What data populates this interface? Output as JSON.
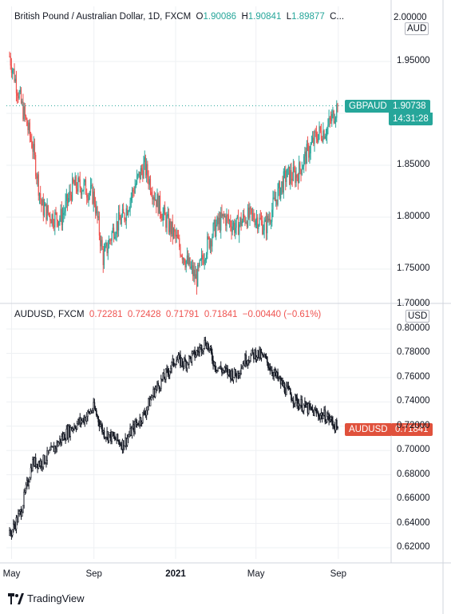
{
  "colors": {
    "up": "#26a69a",
    "down": "#ef5350",
    "line": "#131722",
    "grid": "#eef0f3",
    "axis": "#d1d4dc"
  },
  "top_header": {
    "title": "British Pound / Australian Dollar, 1D, FXCM",
    "o_label": "O",
    "o_value": "1.90086",
    "h_label": "H",
    "h_value": "1.90841",
    "l_label": "L",
    "l_value": "1.89877",
    "c_label": "C..."
  },
  "top_currency": "AUD",
  "top_price_tag": {
    "symbol": "GBPAUD",
    "price": "1.90738",
    "countdown": "14:31:28"
  },
  "top_yticks": [
    "2.00000",
    "1.95000",
    "1.90000",
    "1.85000",
    "1.80000",
    "1.75000",
    "1.70000"
  ],
  "bottom_header": {
    "title": "AUDUSD, FXCM",
    "open": "0.72281",
    "high": "0.72428",
    "low": "0.71791",
    "close": "0.71841",
    "change": "−0.00440 (−0.61%)"
  },
  "bottom_currency": "USD",
  "bottom_price_tag": {
    "symbol": "AUDUSD",
    "price": "0.71841"
  },
  "bottom_yticks": [
    "0.80000",
    "0.78000",
    "0.76000",
    "0.74000",
    "0.72000",
    "0.70000",
    "0.68000",
    "0.66000",
    "0.64000",
    "0.62000"
  ],
  "xticks": [
    "May",
    "Sep",
    "2021",
    "May",
    "Sep"
  ],
  "branding": "TradingView",
  "chart_data": [
    {
      "type": "candlestick",
      "title": "British Pound / Australian Dollar, 1D, FXCM",
      "y_unit": "AUD",
      "ylim": [
        1.7,
        2.0
      ],
      "x": [
        "2020-04-28",
        "2020-05-15",
        "2020-06-01",
        "2020-06-15",
        "2020-07-01",
        "2020-07-15",
        "2020-08-01",
        "2020-08-15",
        "2020-09-01",
        "2020-09-15",
        "2020-10-01",
        "2020-10-15",
        "2020-11-01",
        "2020-11-15",
        "2020-12-01",
        "2020-12-15",
        "2021-01-01",
        "2021-01-15",
        "2021-02-01",
        "2021-02-15",
        "2021-03-01",
        "2021-03-15",
        "2021-04-01",
        "2021-04-15",
        "2021-05-01",
        "2021-05-15",
        "2021-06-01",
        "2021-06-15",
        "2021-07-01",
        "2021-07-15",
        "2021-08-01",
        "2021-08-15",
        "2021-08-31"
      ],
      "y": [
        1.955,
        1.91,
        1.87,
        1.81,
        1.8,
        1.8,
        1.83,
        1.83,
        1.82,
        1.76,
        1.79,
        1.8,
        1.83,
        1.85,
        1.82,
        1.8,
        1.78,
        1.76,
        1.74,
        1.77,
        1.79,
        1.8,
        1.79,
        1.8,
        1.8,
        1.79,
        1.82,
        1.84,
        1.84,
        1.86,
        1.88,
        1.885,
        1.9074
      ],
      "last": 1.90738
    },
    {
      "type": "candlestick",
      "title": "AUDUSD, FXCM",
      "y_unit": "USD",
      "ylim": [
        0.62,
        0.8
      ],
      "x": [
        "2020-04-28",
        "2020-05-15",
        "2020-06-01",
        "2020-06-15",
        "2020-07-01",
        "2020-07-15",
        "2020-08-01",
        "2020-08-15",
        "2020-09-01",
        "2020-09-15",
        "2020-10-01",
        "2020-10-15",
        "2020-11-01",
        "2020-11-15",
        "2020-12-01",
        "2020-12-15",
        "2021-01-01",
        "2021-01-15",
        "2021-02-01",
        "2021-02-15",
        "2021-03-01",
        "2021-03-15",
        "2021-04-01",
        "2021-04-15",
        "2021-05-01",
        "2021-05-15",
        "2021-06-01",
        "2021-06-15",
        "2021-07-01",
        "2021-07-15",
        "2021-08-01",
        "2021-08-15",
        "2021-08-31"
      ],
      "y": [
        0.63,
        0.65,
        0.69,
        0.69,
        0.7,
        0.71,
        0.72,
        0.725,
        0.735,
        0.715,
        0.71,
        0.705,
        0.72,
        0.73,
        0.75,
        0.76,
        0.775,
        0.772,
        0.78,
        0.79,
        0.77,
        0.765,
        0.762,
        0.775,
        0.78,
        0.775,
        0.76,
        0.75,
        0.74,
        0.735,
        0.73,
        0.728,
        0.7184
      ],
      "last": 0.71841
    }
  ]
}
